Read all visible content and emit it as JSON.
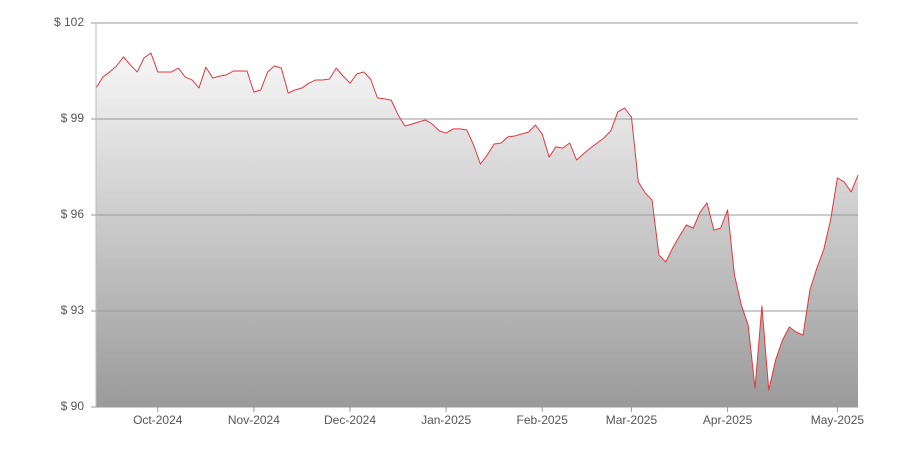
{
  "chart_data": {
    "type": "area",
    "categories": [
      null,
      null,
      null,
      null,
      null,
      null,
      null,
      null,
      null,
      "Oct-2024",
      null,
      null,
      null,
      null,
      null,
      null,
      null,
      null,
      null,
      null,
      null,
      null,
      null,
      "Nov-2024",
      null,
      null,
      null,
      null,
      null,
      null,
      null,
      null,
      null,
      null,
      null,
      null,
      null,
      "Dec-2024",
      null,
      null,
      null,
      null,
      null,
      null,
      null,
      null,
      null,
      null,
      null,
      null,
      null,
      "Jan-2025",
      null,
      null,
      null,
      null,
      null,
      null,
      null,
      null,
      null,
      null,
      null,
      null,
      null,
      "Feb-2025",
      null,
      null,
      null,
      null,
      null,
      null,
      null,
      null,
      null,
      null,
      null,
      null,
      "Mar-2025",
      null,
      null,
      null,
      null,
      null,
      null,
      null,
      null,
      null,
      null,
      null,
      null,
      null,
      "Apr-2025",
      null,
      null,
      null,
      null,
      null,
      null,
      null,
      null,
      null,
      null,
      null,
      null,
      null,
      null,
      null,
      "May-2025",
      null,
      null,
      null
    ],
    "values": [
      99.97,
      100.31,
      100.47,
      100.66,
      100.94,
      100.69,
      100.47,
      100.91,
      101.06,
      100.47,
      100.47,
      100.47,
      100.59,
      100.31,
      100.22,
      99.97,
      100.62,
      100.28,
      100.34,
      100.38,
      100.5,
      100.5,
      100.5,
      99.84,
      99.91,
      100.47,
      100.66,
      100.59,
      99.81,
      99.91,
      99.97,
      100.12,
      100.22,
      100.22,
      100.25,
      100.59,
      100.34,
      100.12,
      100.41,
      100.47,
      100.25,
      99.66,
      99.63,
      99.59,
      99.13,
      98.78,
      98.84,
      98.91,
      98.97,
      98.84,
      98.63,
      98.56,
      98.69,
      98.69,
      98.66,
      98.19,
      97.59,
      97.88,
      98.22,
      98.25,
      98.44,
      98.47,
      98.53,
      98.59,
      98.81,
      98.53,
      97.81,
      98.13,
      98.09,
      98.25,
      97.72,
      97.91,
      98.09,
      98.25,
      98.41,
      98.63,
      99.22,
      99.34,
      99.06,
      97.03,
      96.69,
      96.47,
      94.75,
      94.53,
      94.97,
      95.34,
      95.69,
      95.59,
      96.09,
      96.38,
      95.53,
      95.59,
      96.16,
      94.13,
      93.19,
      92.56,
      90.59,
      93.16,
      90.53,
      91.47,
      92.09,
      92.5,
      92.34,
      92.25,
      93.66,
      94.34,
      94.91,
      95.84,
      97.16,
      97.03,
      96.72,
      97.25
    ],
    "color": "#e0393e",
    "fill_top": "#f7f7f7",
    "fill_bottom": "#9a9a9a",
    "ylim": [
      90,
      102
    ],
    "yticks": [
      {
        "value": 90,
        "label": "$ 90"
      },
      {
        "value": 93,
        "label": "$ 93"
      },
      {
        "value": 96,
        "label": "$ 96"
      },
      {
        "value": 99,
        "label": "$ 99"
      },
      {
        "value": 102,
        "label": "$ 102"
      }
    ],
    "grid": true
  }
}
